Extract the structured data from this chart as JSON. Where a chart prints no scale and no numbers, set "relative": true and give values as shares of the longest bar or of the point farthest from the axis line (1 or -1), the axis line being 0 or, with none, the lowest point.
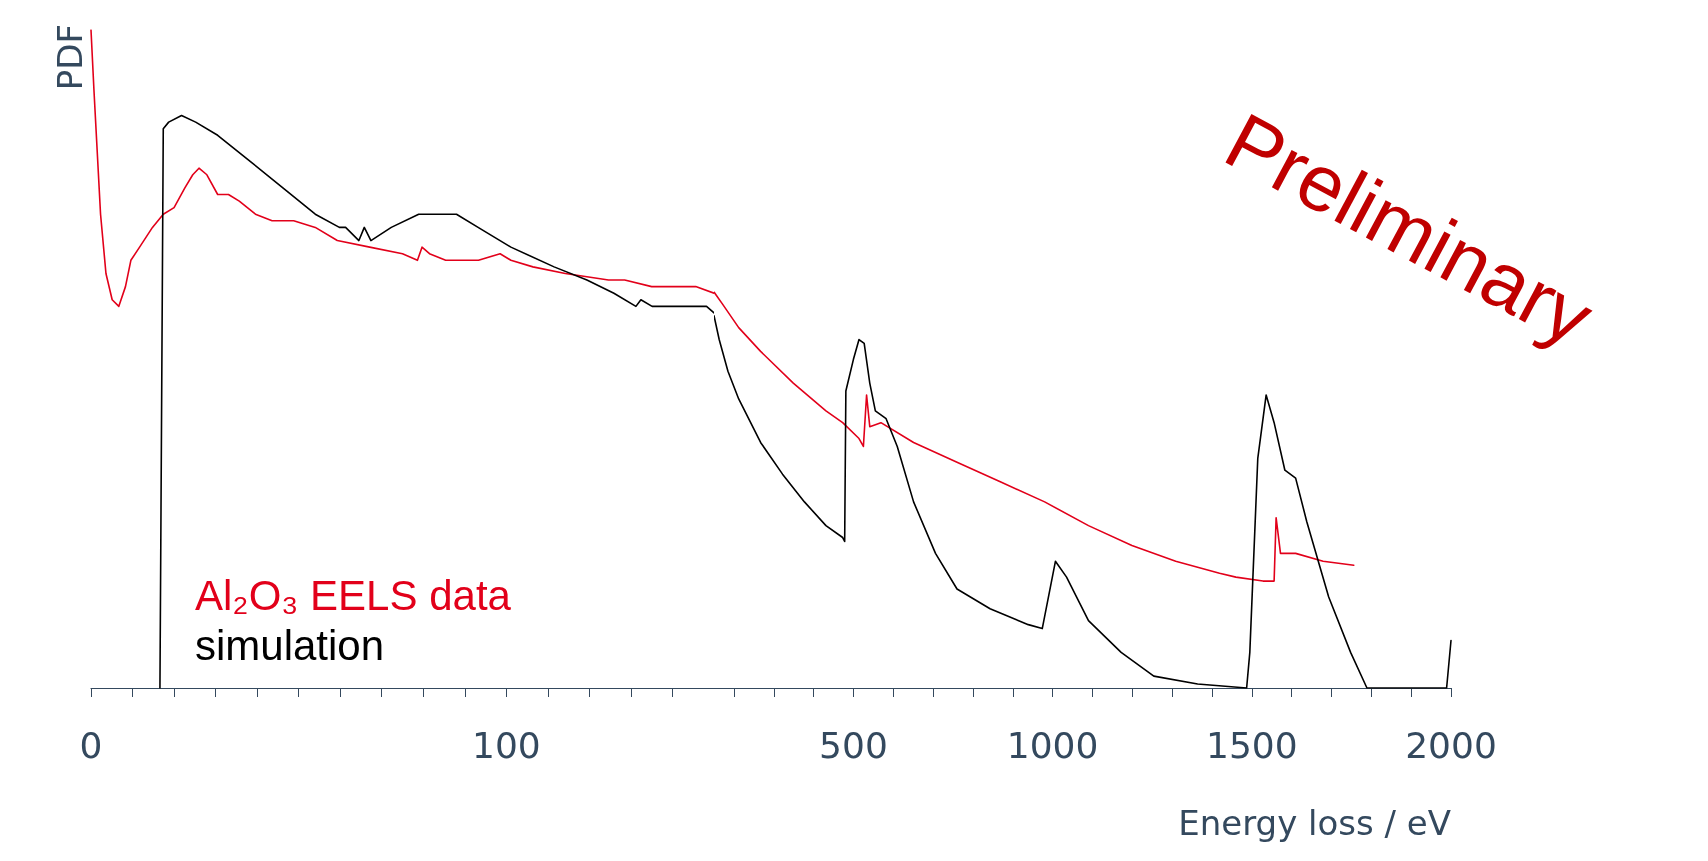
{
  "chart_data": [
    {
      "type": "line",
      "relative": true,
      "ylabel": "PDF",
      "marker": "none",
      "legend": "bottom left",
      "xlim": [
        0,
        150
      ],
      "xticks": [
        0,
        {
          "value": 10,
          "label": null
        },
        {
          "value": 20,
          "label": null
        },
        {
          "value": 30,
          "label": null
        },
        {
          "value": 40,
          "label": null
        },
        {
          "value": 50,
          "label": null
        },
        {
          "value": 60,
          "label": null
        },
        {
          "value": 70,
          "label": null
        },
        {
          "value": 80,
          "label": null
        },
        {
          "value": 90,
          "label": null
        },
        100,
        {
          "value": 110,
          "label": null
        },
        {
          "value": 120,
          "label": null
        },
        {
          "value": 130,
          "label": null
        },
        {
          "value": 140,
          "label": null
        },
        {
          "value": 150,
          "label": null
        }
      ],
      "series": [
        {
          "name": "Al₂O₃ EELS data",
          "color": "#e2001a",
          "x": [
            0,
            0.7,
            2.3,
            3.6,
            5.1,
            6.7,
            8.3,
            9.6,
            11.7,
            14.8,
            17.4,
            20,
            22.6,
            24.5,
            26,
            27.9,
            30.5,
            33.1,
            35.7,
            39.6,
            43.6,
            48.8,
            54,
            59.3,
            67.1,
            75,
            78.6,
            79.7,
            81.5,
            85.4,
            89.3,
            93.3,
            98.5,
            101.1,
            106.4,
            114.2,
            124.6,
            128.5,
            135,
            145.6,
            150
          ],
          "values": [
            1.0,
            0.91,
            0.72,
            0.63,
            0.59,
            0.58,
            0.61,
            0.65,
            0.67,
            0.7,
            0.72,
            0.73,
            0.76,
            0.78,
            0.79,
            0.78,
            0.75,
            0.75,
            0.74,
            0.72,
            0.71,
            0.71,
            0.7,
            0.68,
            0.67,
            0.66,
            0.65,
            0.67,
            0.66,
            0.65,
            0.65,
            0.65,
            0.66,
            0.65,
            0.64,
            0.63,
            0.62,
            0.62,
            0.61,
            0.61,
            0.6
          ]
        },
        {
          "name": "simulation",
          "color": "#000000",
          "x": [
            16.6,
            17.4,
            18.7,
            21.8,
            25.2,
            30.5,
            38.4,
            46.2,
            54,
            59.8,
            61.3,
            64.5,
            65.8,
            67.4,
            72.3,
            78.9,
            84.1,
            88,
            93.2,
            101.1,
            111.5,
            119.4,
            125.9,
            131.2,
            132.4,
            135.1,
            142.9,
            148.2,
            150
          ],
          "values": [
            0,
            0.85,
            0.86,
            0.87,
            0.86,
            0.84,
            0.8,
            0.76,
            0.72,
            0.7,
            0.7,
            0.68,
            0.7,
            0.68,
            0.7,
            0.72,
            0.72,
            0.72,
            0.7,
            0.67,
            0.64,
            0.62,
            0.6,
            0.58,
            0.59,
            0.58,
            0.58,
            0.58,
            0.57
          ]
        }
      ]
    },
    {
      "type": "line",
      "relative": true,
      "xlabel": "Energy loss / eV",
      "marker": "none",
      "annotations": [
        "Preliminary"
      ],
      "xlim": [
        150,
        2000
      ],
      "xticks": [
        {
          "value": 200,
          "label": null
        },
        {
          "value": 300,
          "label": null
        },
        {
          "value": 400,
          "label": null
        },
        500,
        {
          "value": 600,
          "label": null
        },
        {
          "value": 700,
          "label": null
        },
        {
          "value": 800,
          "label": null
        },
        {
          "value": 900,
          "label": null
        },
        1000,
        {
          "value": 1100,
          "label": null
        },
        {
          "value": 1200,
          "label": null
        },
        {
          "value": 1300,
          "label": null
        },
        {
          "value": 1400,
          "label": null
        },
        1500,
        {
          "value": 1600,
          "label": null
        },
        {
          "value": 1700,
          "label": null
        },
        {
          "value": 1800,
          "label": null
        },
        {
          "value": 1900,
          "label": null
        },
        2000
      ],
      "series": [
        {
          "color": "#e2001a",
          "x": [
            150,
            171,
            212,
            267,
            349,
            431,
            473,
            514,
            525,
            533,
            541,
            569,
            651,
            760,
            870,
            980,
            1090,
            1199,
            1309,
            1419,
            1460,
            1528,
            1556,
            1561,
            1572,
            1610,
            1679,
            1756
          ],
          "values": [
            1.0,
            0.97,
            0.91,
            0.85,
            0.77,
            0.7,
            0.67,
            0.63,
            0.61,
            0.74,
            0.66,
            0.67,
            0.62,
            0.57,
            0.52,
            0.47,
            0.41,
            0.36,
            0.32,
            0.29,
            0.28,
            0.27,
            0.27,
            0.43,
            0.34,
            0.34,
            0.32,
            0.31
          ]
        },
        {
          "color": "#000000",
          "x": [
            150,
            163,
            185,
            212,
            267,
            322,
            377,
            431,
            473,
            478,
            481,
            500,
            514,
            527,
            541,
            555,
            582,
            610,
            651,
            706,
            760,
            843,
            939,
            974,
            1007,
            1035,
            1090,
            1172,
            1254,
            1364,
            1487,
            1495,
            1515,
            1536,
            1556,
            1583,
            1610,
            1638,
            1693,
            1748,
            1789,
            1885,
            1989,
            2000
          ],
          "values": [
            0.94,
            0.88,
            0.8,
            0.73,
            0.62,
            0.54,
            0.47,
            0.41,
            0.38,
            0.37,
            0.75,
            0.83,
            0.88,
            0.87,
            0.77,
            0.7,
            0.68,
            0.61,
            0.47,
            0.34,
            0.25,
            0.2,
            0.16,
            0.15,
            0.32,
            0.28,
            0.17,
            0.09,
            0.03,
            0.01,
            0,
            0.09,
            0.58,
            0.74,
            0.67,
            0.55,
            0.53,
            0.42,
            0.23,
            0.09,
            0,
            0,
            0,
            0.12
          ]
        }
      ]
    }
  ]
}
